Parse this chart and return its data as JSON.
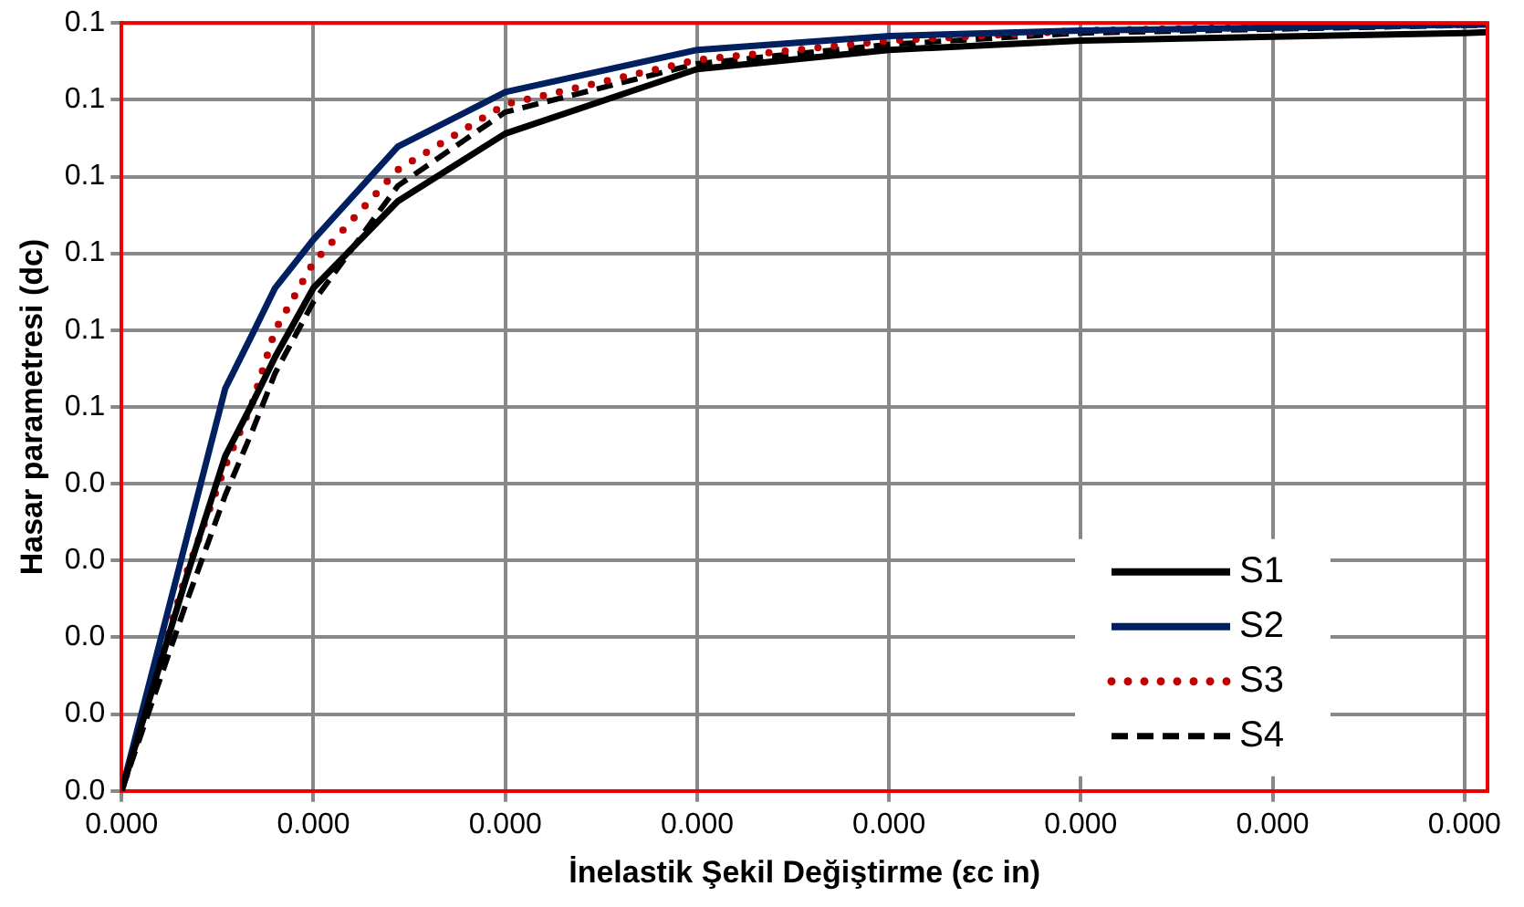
{
  "chart_data": {
    "type": "line",
    "xlabel": "İnelastik Şekil Değiştirme (εc in)",
    "ylabel": "Hasar parametresi (dc)",
    "x": [
      0,
      1.7e-05,
      2.7e-05,
      3.4e-05,
      4e-05,
      5e-05,
      7.2e-05,
      0.0001,
      0.00015,
      0.0002,
      0.00025,
      0.0003,
      0.00035,
      0.000356
    ],
    "series": [
      {
        "name": "S1",
        "color": "#000000",
        "line_style": "solid",
        "values": [
          0,
          0.028,
          0.0436,
          0.0504,
          0.0565,
          0.0655,
          0.0768,
          0.0856,
          0.094,
          0.0965,
          0.0977,
          0.0982,
          0.0987,
          0.0988
        ]
      },
      {
        "name": "S2",
        "color": "#002060",
        "line_style": "solid",
        "values": [
          0,
          0.033,
          0.0524,
          0.0594,
          0.0655,
          0.0718,
          0.0839,
          0.091,
          0.0965,
          0.0983,
          0.099,
          0.0994,
          0.0998,
          0.0998
        ]
      },
      {
        "name": "S3",
        "color": "#c00000",
        "line_style": "dotted",
        "values": [
          0,
          0.0285,
          0.0423,
          0.0504,
          0.06,
          0.0688,
          0.0809,
          0.0894,
          0.0952,
          0.0977,
          0.099,
          0.0995,
          0.0998,
          0.0998
        ]
      },
      {
        "name": "S4",
        "color": "#000000",
        "line_style": "dashed",
        "values": [
          0,
          0.0247,
          0.0385,
          0.0468,
          0.0544,
          0.0637,
          0.0788,
          0.0884,
          0.0947,
          0.0972,
          0.0987,
          0.0992,
          0.0997,
          0.0997
        ]
      }
    ],
    "xlim": [
      0,
      0.000356
    ],
    "xticks": [
      {
        "value": 0,
        "label": "0.000"
      },
      {
        "value": 5e-05,
        "label": "0.000"
      },
      {
        "value": 0.0001,
        "label": "0.000"
      },
      {
        "value": 0.00015,
        "label": "0.000"
      },
      {
        "value": 0.0002,
        "label": "0.000"
      },
      {
        "value": 0.00025,
        "label": "0.000"
      },
      {
        "value": 0.0003,
        "label": "0.000"
      },
      {
        "value": 0.00035,
        "label": "0.000"
      }
    ],
    "ylim": [
      0,
      0.1
    ],
    "yticks": [
      {
        "value": 0,
        "label": "0.0"
      },
      {
        "value": 0.01,
        "label": "0.0"
      },
      {
        "value": 0.02,
        "label": "0.0"
      },
      {
        "value": 0.03,
        "label": "0.0"
      },
      {
        "value": 0.04,
        "label": "0.0"
      },
      {
        "value": 0.05,
        "label": "0.1"
      },
      {
        "value": 0.06,
        "label": "0.1"
      },
      {
        "value": 0.07,
        "label": "0.1"
      },
      {
        "value": 0.08,
        "label": "0.1"
      },
      {
        "value": 0.09,
        "label": "0.1"
      },
      {
        "value": 0.1,
        "label": "0.1"
      }
    ],
    "grid": true,
    "legend": "bottom right",
    "marker": "none"
  }
}
